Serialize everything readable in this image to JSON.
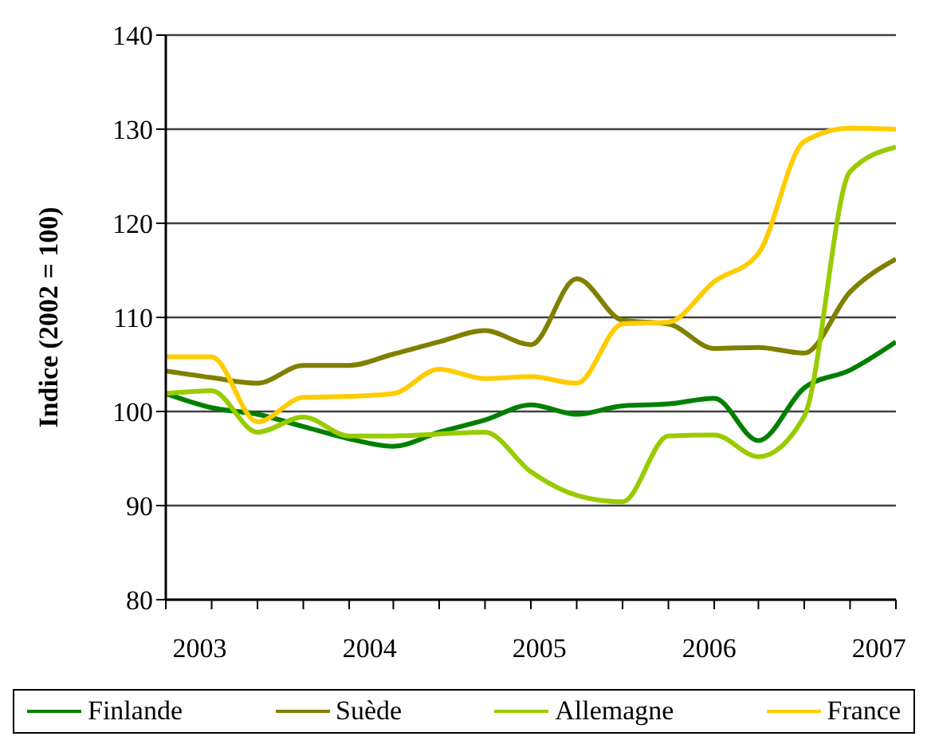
{
  "chart_data": {
    "type": "line",
    "ylabel": "Indice (2002 = 100)",
    "x": [
      2002.8,
      2003.07,
      2003.34,
      2003.61,
      2003.88,
      2004.14,
      2004.41,
      2004.68,
      2004.95,
      2005.22,
      2005.49,
      2005.76,
      2006.03,
      2006.29,
      2006.56,
      2006.83,
      2007.1
    ],
    "xlim": [
      2002.8,
      2007.1
    ],
    "xticks": [
      {
        "value": 2002.8,
        "label": null
      },
      {
        "value": 2003.07,
        "label": null
      },
      {
        "value": 2003.34,
        "label": null
      },
      {
        "value": 2003.61,
        "label": null
      },
      {
        "value": 2003.88,
        "label": null
      },
      {
        "value": 2004.14,
        "label": null
      },
      {
        "value": 2004.41,
        "label": null
      },
      {
        "value": 2004.68,
        "label": null
      },
      {
        "value": 2004.95,
        "label": null
      },
      {
        "value": 2005.22,
        "label": null
      },
      {
        "value": 2005.49,
        "label": null
      },
      {
        "value": 2005.76,
        "label": null
      },
      {
        "value": 2006.03,
        "label": null
      },
      {
        "value": 2006.29,
        "label": null
      },
      {
        "value": 2006.56,
        "label": null
      },
      {
        "value": 2006.83,
        "label": null
      },
      {
        "value": 2007.1,
        "label": null
      },
      2003,
      2004,
      2005,
      2006,
      2007
    ],
    "ylim": [
      80,
      140
    ],
    "yticks": [
      80,
      90,
      100,
      110,
      120,
      130,
      140
    ],
    "grid": "y",
    "legend": "bottom",
    "marker": "none",
    "series": [
      {
        "name": "Finlande",
        "color": "#008000",
        "values": [
          101.9,
          100.4,
          99.7,
          98.4,
          97.1,
          96.3,
          97.8,
          99.1,
          100.7,
          99.7,
          100.6,
          100.8,
          101.4,
          96.9,
          102.5,
          104.4,
          107.4
        ]
      },
      {
        "name": "Suède",
        "color": "#808000",
        "values": [
          104.3,
          103.6,
          103.0,
          104.9,
          104.9,
          106.1,
          107.4,
          108.6,
          107.1,
          114.1,
          109.7,
          109.3,
          106.7,
          106.8,
          106.2,
          112.7,
          116.2
        ]
      },
      {
        "name": "Allemagne",
        "color": "#99cc00",
        "values": [
          101.9,
          102.2,
          97.8,
          99.4,
          97.4,
          97.4,
          97.6,
          97.8,
          93.6,
          91.1,
          90.4,
          97.4,
          97.5,
          95.2,
          99.5,
          125.5,
          128.1
        ]
      },
      {
        "name": "France",
        "color": "#ffcc00",
        "values": [
          105.8,
          105.8,
          98.9,
          101.5,
          101.6,
          101.9,
          104.5,
          103.5,
          103.7,
          103.0,
          109.3,
          109.5,
          113.8,
          116.8,
          128.7,
          130.1,
          130.0
        ]
      }
    ]
  }
}
